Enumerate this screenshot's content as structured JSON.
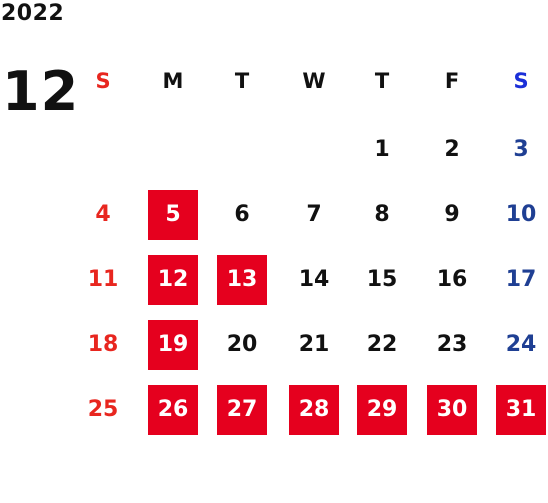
{
  "calendar": {
    "year": "2022",
    "month": "12",
    "weekday_labels": [
      "S",
      "M",
      "T",
      "W",
      "T",
      "F",
      "S"
    ],
    "weeks": [
      [
        null,
        null,
        null,
        null,
        "1",
        "2",
        "3"
      ],
      [
        "4",
        "5",
        "6",
        "7",
        "8",
        "9",
        "10"
      ],
      [
        "11",
        "12",
        "13",
        "14",
        "15",
        "16",
        "17"
      ],
      [
        "18",
        "19",
        "20",
        "21",
        "22",
        "23",
        "24"
      ],
      [
        "25",
        "26",
        "27",
        "28",
        "29",
        "30",
        "31"
      ]
    ],
    "highlighted_days": [
      "5",
      "12",
      "13",
      "19",
      "26",
      "27",
      "28",
      "29",
      "30",
      "31"
    ],
    "colors": {
      "sunday": "#e8261f",
      "saturday": "#1f3f93",
      "saturday_header": "#1b2fd8",
      "weekday": "#111111",
      "highlight_bg": "#e5001e",
      "highlight_text": "#ffffff"
    }
  }
}
